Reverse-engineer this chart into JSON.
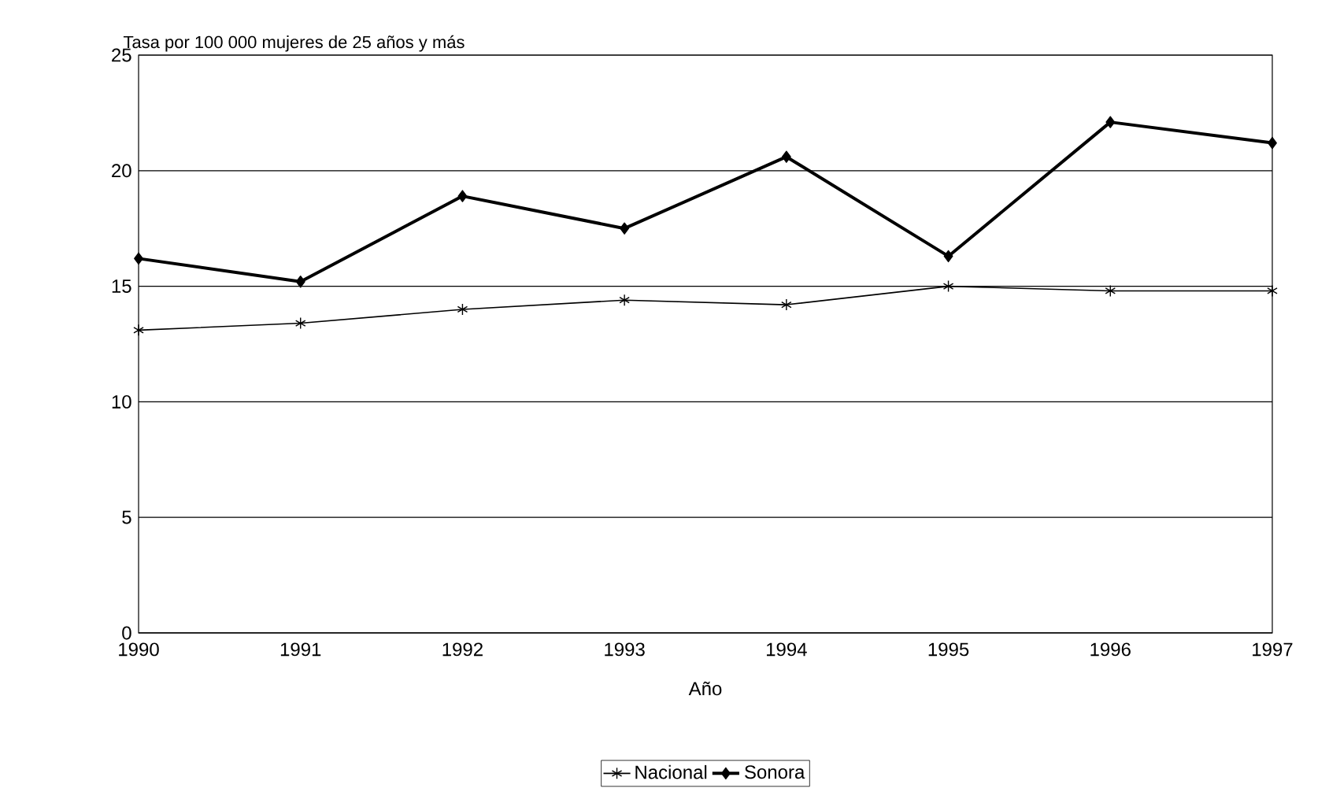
{
  "chart_data": {
    "type": "line",
    "ylabel": "Tasa por 100 000 mujeres de 25 años y más",
    "xlabel": "Año",
    "x": [
      1990,
      1991,
      1992,
      1993,
      1994,
      1995,
      1996,
      1997
    ],
    "xlim": [
      1990,
      1997
    ],
    "xticks": [
      1990,
      1991,
      1992,
      1993,
      1994,
      1995,
      1996,
      1997
    ],
    "ylim": [
      0,
      25
    ],
    "yticks": [
      0,
      5,
      10,
      15,
      20,
      25
    ],
    "grid": "y",
    "legend": "bottom",
    "series": [
      {
        "name": "Nacional",
        "color": "#000000",
        "marker": "cross",
        "values": [
          13.1,
          13.4,
          14.0,
          14.4,
          14.2,
          15.0,
          14.8,
          14.8
        ]
      },
      {
        "name": "Sonora",
        "color": "#000000",
        "marker": "diamond",
        "values": [
          16.2,
          15.2,
          18.9,
          17.5,
          20.6,
          16.3,
          22.1,
          21.2
        ]
      }
    ]
  }
}
